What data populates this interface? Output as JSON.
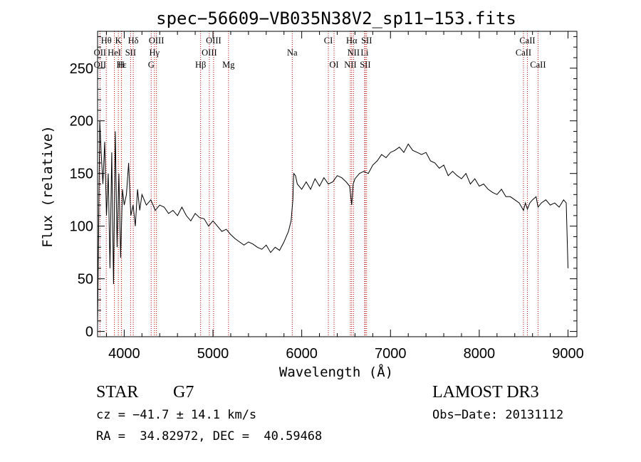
{
  "chart_data": {
    "type": "line",
    "title": "spec−56609−VB035N38V2_sp11−153.fits",
    "xlabel": "Wavelength (Å)",
    "ylabel": "Flux (relative)",
    "xlim": [
      3700,
      9100
    ],
    "ylim": [
      -5,
      285
    ],
    "x_ticks": [
      4000,
      5000,
      6000,
      7000,
      8000,
      9000
    ],
    "y_ticks": [
      0,
      50,
      100,
      150,
      200,
      250
    ],
    "grid": false,
    "series": [
      {
        "x": [
          3700,
          3710,
          3725,
          3740,
          3760,
          3780,
          3800,
          3820,
          3840,
          3860,
          3880,
          3900,
          3920,
          3940,
          3960,
          3980,
          4000,
          4025,
          4050,
          4075,
          4100,
          4125,
          4150,
          4175,
          4200,
          4250,
          4300,
          4350,
          4400,
          4450,
          4500,
          4550,
          4600,
          4650,
          4700,
          4750,
          4800,
          4850,
          4900,
          4950,
          5000,
          5050,
          5100,
          5150,
          5200,
          5250,
          5300,
          5350,
          5400,
          5450,
          5500,
          5550,
          5600,
          5650,
          5700,
          5750,
          5800,
          5850,
          5880,
          5900,
          5910,
          5930,
          5950,
          6000,
          6050,
          6100,
          6150,
          6200,
          6250,
          6300,
          6350,
          6400,
          6450,
          6500,
          6540,
          6563,
          6580,
          6600,
          6650,
          6700,
          6750,
          6800,
          6850,
          6900,
          6950,
          7000,
          7050,
          7100,
          7150,
          7200,
          7250,
          7300,
          7350,
          7400,
          7450,
          7500,
          7550,
          7600,
          7650,
          7700,
          7750,
          7800,
          7850,
          7900,
          7950,
          8000,
          8050,
          8100,
          8150,
          8200,
          8250,
          8300,
          8350,
          8400,
          8450,
          8498,
          8520,
          8542,
          8570,
          8600,
          8640,
          8662,
          8700,
          8750,
          8800,
          8850,
          8900,
          8950,
          8980,
          9000
        ],
        "y": [
          5,
          80,
          200,
          170,
          140,
          180,
          110,
          150,
          60,
          170,
          45,
          190,
          80,
          150,
          70,
          135,
          120,
          130,
          160,
          110,
          120,
          100,
          135,
          115,
          130,
          120,
          125,
          115,
          120,
          118,
          112,
          115,
          110,
          118,
          110,
          105,
          112,
          108,
          107,
          100,
          105,
          100,
          95,
          97,
          92,
          88,
          85,
          82,
          85,
          83,
          80,
          78,
          82,
          75,
          80,
          77,
          85,
          95,
          105,
          125,
          150,
          148,
          140,
          135,
          142,
          135,
          145,
          138,
          146,
          140,
          142,
          148,
          146,
          142,
          138,
          120,
          140,
          145,
          150,
          152,
          150,
          158,
          162,
          168,
          165,
          170,
          172,
          175,
          170,
          178,
          172,
          170,
          168,
          170,
          162,
          160,
          155,
          158,
          148,
          152,
          148,
          145,
          150,
          140,
          145,
          138,
          140,
          135,
          132,
          130,
          135,
          128,
          128,
          125,
          122,
          115,
          122,
          116,
          122,
          125,
          128,
          118,
          122,
          125,
          120,
          122,
          118,
          125,
          122,
          60
        ]
      }
    ],
    "line_markers": [
      {
        "label": "Hθ",
        "x": 3798,
        "row": 1
      },
      {
        "label": "K",
        "x": 3934,
        "row": 1
      },
      {
        "label": "Hδ",
        "x": 4102,
        "row": 1
      },
      {
        "label": "OIII",
        "x": 4363,
        "row": 1
      },
      {
        "label": "OIII",
        "x": 5007,
        "row": 1
      },
      {
        "label": "CI",
        "x": 6300,
        "row": 1
      },
      {
        "label": "Hα",
        "x": 6563,
        "row": 1
      },
      {
        "label": "SII",
        "x": 6731,
        "row": 1
      },
      {
        "label": "CaII",
        "x": 8542,
        "row": 1
      },
      {
        "label": "OII",
        "x": 3727,
        "row": 2
      },
      {
        "label": "HeI",
        "x": 3889,
        "row": 2
      },
      {
        "label": "SII",
        "x": 4072,
        "row": 2
      },
      {
        "label": "Hγ",
        "x": 4340,
        "row": 2
      },
      {
        "label": "OIII",
        "x": 4959,
        "row": 2
      },
      {
        "label": "Na",
        "x": 5893,
        "row": 2
      },
      {
        "label": "NII",
        "x": 6583,
        "row": 2
      },
      {
        "label": "Li",
        "x": 6708,
        "row": 2
      },
      {
        "label": "CaII",
        "x": 8498,
        "row": 2
      },
      {
        "label": "OII",
        "x": 3727,
        "row": 3
      },
      {
        "label": "Hε",
        "x": 3970,
        "row": 3
      },
      {
        "label": "H",
        "x": 3968,
        "row": 3
      },
      {
        "label": "G",
        "x": 4304,
        "row": 3
      },
      {
        "label": "Hβ",
        "x": 4861,
        "row": 3
      },
      {
        "label": "Mg",
        "x": 5175,
        "row": 3
      },
      {
        "label": "OI",
        "x": 6364,
        "row": 3
      },
      {
        "label": "NII",
        "x": 6548,
        "row": 3
      },
      {
        "label": "SII",
        "x": 6716,
        "row": 3
      },
      {
        "label": "CaII",
        "x": 8662,
        "row": 3
      }
    ],
    "line_color": "#000000",
    "marker_color": "#c00000"
  },
  "info": {
    "object_type": "STAR",
    "subclass": "G7",
    "survey": "LAMOST DR3",
    "redshift": "cz = −41.7 ± 14.1 km/s",
    "obs_date": "Obs−Date: 20131112",
    "coords": "RA =  34.82972, DEC =  40.59468"
  }
}
